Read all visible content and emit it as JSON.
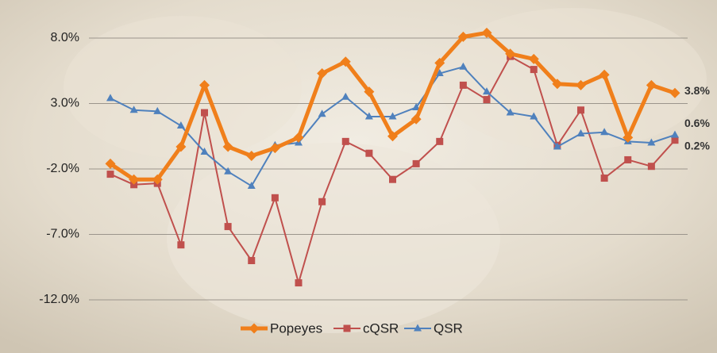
{
  "chart_data": {
    "type": "line",
    "ylim": [
      -12,
      8
    ],
    "yticks": [
      {
        "value": -12,
        "label": "-12.0%"
      },
      {
        "value": -7,
        "label": "-7.0%"
      },
      {
        "value": -2,
        "label": "-2.0%"
      },
      {
        "value": 3,
        "label": "3.0%"
      },
      {
        "value": 8,
        "label": "8.0%"
      }
    ],
    "grid": true,
    "legend": "bottom",
    "series": [
      {
        "name": "Popeyes",
        "color": "#f07f1b",
        "marker": "diamond",
        "values": [
          -1.6,
          -2.8,
          -2.8,
          -0.3,
          4.4,
          -0.3,
          -1.0,
          -0.4,
          0.4,
          5.3,
          6.2,
          3.9,
          0.5,
          1.8,
          6.1,
          8.1,
          8.4,
          6.8,
          6.4,
          4.5,
          4.4,
          5.2,
          0.4,
          4.4,
          3.8
        ],
        "value_labels": [
          null,
          null,
          null,
          null,
          null,
          null,
          null,
          null,
          null,
          null,
          null,
          null,
          null,
          null,
          null,
          null,
          null,
          null,
          null,
          null,
          null,
          null,
          null,
          null,
          "3.8%"
        ]
      },
      {
        "name": "cQSR",
        "color": "#c0504d",
        "marker": "square",
        "values": [
          -2.4,
          -3.2,
          -3.1,
          -7.8,
          2.3,
          -6.4,
          -9.0,
          -4.2,
          -10.7,
          -4.5,
          0.1,
          -0.8,
          -2.8,
          -1.6,
          0.1,
          4.4,
          3.3,
          6.6,
          5.6,
          -0.2,
          2.5,
          -2.7,
          -1.3,
          -1.8,
          0.2
        ],
        "value_labels": [
          null,
          null,
          null,
          null,
          null,
          null,
          null,
          null,
          null,
          null,
          null,
          null,
          null,
          null,
          null,
          null,
          null,
          null,
          null,
          null,
          null,
          null,
          null,
          null,
          "0.2%"
        ]
      },
      {
        "name": "QSR",
        "color": "#4f81bd",
        "marker": "triangle",
        "values": [
          3.4,
          2.5,
          2.4,
          1.3,
          -0.7,
          -2.2,
          -3.3,
          -0.2,
          0.0,
          2.2,
          3.5,
          2.0,
          2.0,
          2.7,
          5.3,
          5.8,
          3.9,
          2.3,
          2.0,
          -0.3,
          0.7,
          0.8,
          0.1,
          0.0,
          0.6
        ],
        "value_labels": [
          null,
          null,
          null,
          null,
          null,
          null,
          null,
          null,
          null,
          null,
          null,
          null,
          null,
          null,
          null,
          null,
          null,
          null,
          null,
          null,
          null,
          null,
          null,
          null,
          "0.6%"
        ]
      }
    ]
  }
}
